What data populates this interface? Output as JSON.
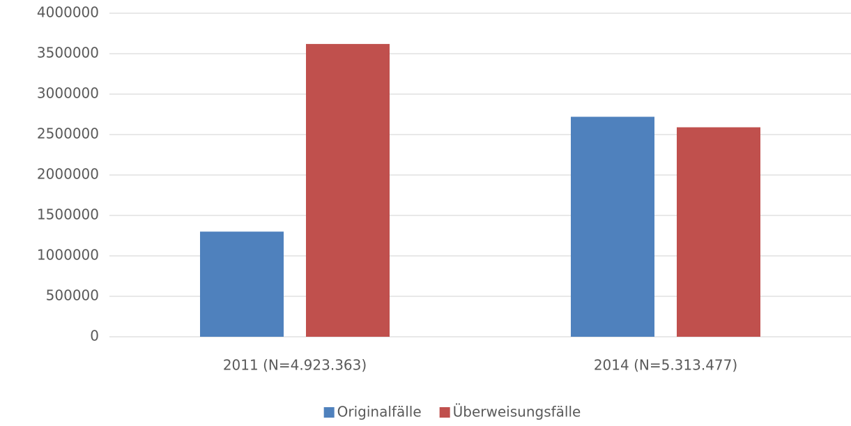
{
  "chart_data": {
    "type": "bar",
    "categories": [
      "2011 (N=4.923.363)",
      "2014 (N=5.313.477)"
    ],
    "series": [
      {
        "name": "Originalfälle",
        "color": "#4f81bd",
        "values": [
          1300000,
          2720000
        ]
      },
      {
        "name": "Überweisungsfälle",
        "color": "#c0504d",
        "values": [
          3620000,
          2590000
        ]
      }
    ],
    "ylim": [
      0,
      4000000
    ],
    "yticks": [
      0,
      500000,
      1000000,
      1500000,
      2000000,
      2500000,
      3000000,
      3500000,
      4000000
    ],
    "grid": true,
    "legend": "bottom"
  }
}
